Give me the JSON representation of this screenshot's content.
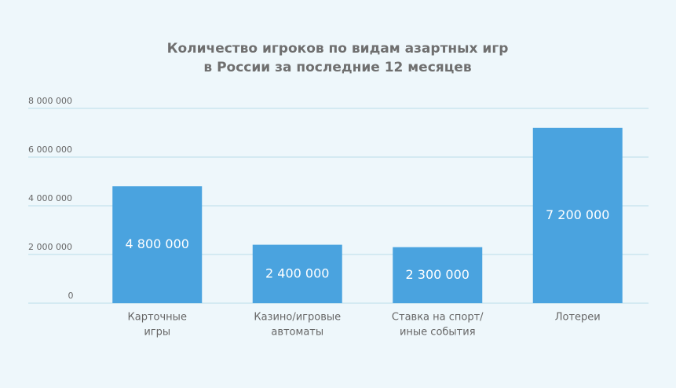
{
  "chart_data": {
    "type": "bar",
    "title": [
      "Количество игроков по видам азартных игр",
      "в России за последние 12 месяцев"
    ],
    "categories": [
      [
        "Карточные",
        "игры"
      ],
      [
        "Казино/игровые",
        "автоматы"
      ],
      [
        "Ставка на спорт/",
        "иные события"
      ],
      [
        "Лотереи"
      ]
    ],
    "values": [
      4800000,
      2400000,
      2300000,
      7200000
    ],
    "value_labels": [
      "4 800 000",
      "2 400 000",
      "2 300 000",
      "7 200 000"
    ],
    "color": "#4aa3df",
    "ylim": [
      0,
      8000000
    ],
    "yticks": [
      0,
      {
        "value": 2000000,
        "label": "2 000 000"
      },
      {
        "value": 4000000,
        "label": "4 000 000"
      },
      {
        "value": 6000000,
        "label": "6 000 000"
      },
      {
        "value": 8000000,
        "label": "8 000 000"
      }
    ],
    "grid": true
  }
}
